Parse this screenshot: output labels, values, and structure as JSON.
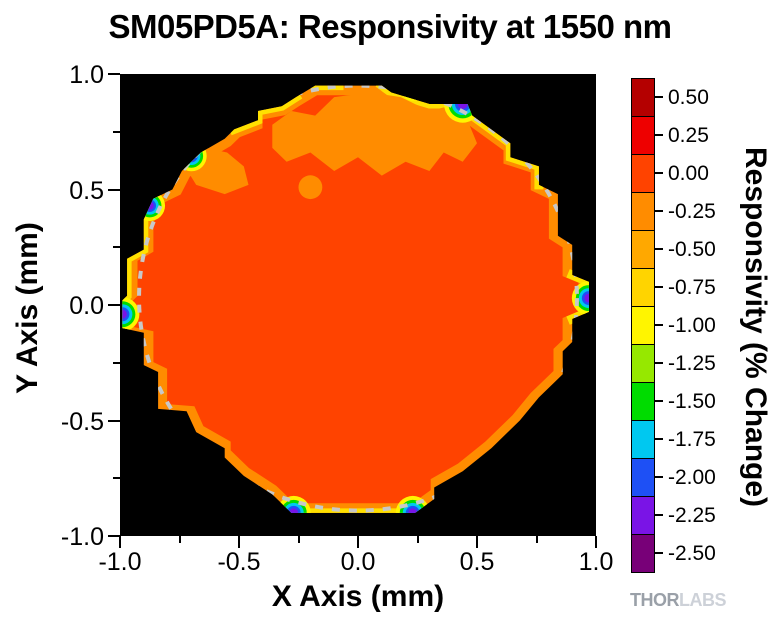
{
  "title": "SM05PD5A: Responsivity at 1550 nm",
  "logo": {
    "part1": "THOR",
    "part2": "LABS"
  },
  "chart_data": {
    "type": "heatmap",
    "title": "SM05PD5A: Responsivity at 1550 nm",
    "xlabel": "X Axis (mm)",
    "ylabel": "Y Axis (mm)",
    "xlim": [
      -1.0,
      1.0
    ],
    "ylim": [
      -1.0,
      1.0
    ],
    "x_major_ticks": [
      -1.0,
      -0.5,
      0.0,
      0.5,
      1.0
    ],
    "x_major_tick_labels": [
      "-1.0",
      "-0.5",
      "0.0",
      "0.5",
      "1.0"
    ],
    "x_minor_ticks": [
      -0.75,
      -0.25,
      0.25,
      0.75
    ],
    "y_major_ticks": [
      1.0,
      0.5,
      0.0,
      -0.5,
      -1.0
    ],
    "y_major_tick_labels": [
      "1.0",
      "0.5",
      "0.0",
      "-0.5",
      "-1.0"
    ],
    "y_minor_ticks": [
      0.75,
      0.25,
      -0.25,
      -0.75
    ],
    "background_color": "#000000",
    "grid": false,
    "legend_position": "right-colorbar",
    "colorbar": {
      "label": "Responsivity (% Change)",
      "levels": [
        0.5,
        0.25,
        0.0,
        -0.25,
        -0.5,
        -0.75,
        -1.0,
        -1.25,
        -1.5,
        -1.75,
        -2.0,
        -2.25,
        -2.5
      ],
      "tick_labels": [
        "0.50",
        "0.25",
        "0.00",
        "-0.25",
        "-0.50",
        "-0.75",
        "-1.00",
        "-1.25",
        "-1.50",
        "-1.75",
        "-2.00",
        "-2.25",
        "-2.50"
      ],
      "colors": [
        "#B40000",
        "#EE0000",
        "#FF4300",
        "#FF8C00",
        "#FFA800",
        "#FFD400",
        "#FFF500",
        "#96E800",
        "#00DC00",
        "#00C8F0",
        "#1E50F5",
        "#7A14E6",
        "#780078"
      ]
    },
    "summary": "Circular photodiode active area ~1.9 mm diameter centered near (0,0). Responsivity change is ~0.00 to -0.25% over most of the area, -0.25 to -0.50% in patches near the top rim, falling off through yellow/green/blue to about -2.50% at a few edge points. Dashed grey circle marks the nominal active-area boundary.",
    "active_area": {
      "body_color": "#FF4300",
      "rim_color": "#FF8C00",
      "yellow_color": "#FFE000",
      "inner_scale": 0.955,
      "center": [
        0,
        0.02
      ],
      "outline": [
        [
          -0.18,
          0.95
        ],
        [
          0.1,
          0.95
        ],
        [
          0.14,
          0.92
        ],
        [
          0.3,
          0.87
        ],
        [
          0.46,
          0.87
        ],
        [
          0.48,
          0.82
        ],
        [
          0.64,
          0.7
        ],
        [
          0.64,
          0.64
        ],
        [
          0.76,
          0.6
        ],
        [
          0.76,
          0.52
        ],
        [
          0.84,
          0.48
        ],
        [
          0.84,
          0.3
        ],
        [
          0.9,
          0.26
        ],
        [
          0.9,
          0.13
        ],
        [
          0.97,
          0.1
        ],
        [
          0.97,
          -0.03
        ],
        [
          0.9,
          -0.06
        ],
        [
          0.9,
          -0.16
        ],
        [
          0.86,
          -0.2
        ],
        [
          0.86,
          -0.3
        ],
        [
          0.76,
          -0.4
        ],
        [
          0.68,
          -0.5
        ],
        [
          0.56,
          -0.62
        ],
        [
          0.44,
          -0.72
        ],
        [
          0.32,
          -0.79
        ],
        [
          0.32,
          -0.84
        ],
        [
          0.24,
          -0.9
        ],
        [
          -0.28,
          -0.9
        ],
        [
          -0.36,
          -0.82
        ],
        [
          -0.48,
          -0.74
        ],
        [
          -0.56,
          -0.66
        ],
        [
          -0.56,
          -0.62
        ],
        [
          -0.68,
          -0.55
        ],
        [
          -0.72,
          -0.46
        ],
        [
          -0.84,
          -0.45
        ],
        [
          -0.84,
          -0.29
        ],
        [
          -0.9,
          -0.26
        ],
        [
          -0.9,
          -0.12
        ],
        [
          -0.99,
          -0.1
        ],
        [
          -0.99,
          0.02
        ],
        [
          -0.97,
          0.04
        ],
        [
          -0.97,
          0.2
        ],
        [
          -0.9,
          0.24
        ],
        [
          -0.9,
          0.37
        ],
        [
          -0.86,
          0.46
        ],
        [
          -0.78,
          0.5
        ],
        [
          -0.74,
          0.58
        ],
        [
          -0.66,
          0.66
        ],
        [
          -0.56,
          0.72
        ],
        [
          -0.52,
          0.76
        ],
        [
          -0.42,
          0.8
        ],
        [
          -0.42,
          0.84
        ],
        [
          -0.32,
          0.86
        ],
        [
          -0.26,
          0.9
        ]
      ],
      "yellow_runs": [
        [
          [
            -0.18,
            0.95
          ],
          [
            -0.08,
            0.95
          ]
        ],
        [
          [
            0.1,
            0.95
          ],
          [
            0.14,
            0.92
          ],
          [
            0.3,
            0.87
          ],
          [
            0.46,
            0.87
          ],
          [
            0.48,
            0.82
          ],
          [
            0.64,
            0.7
          ],
          [
            0.64,
            0.64
          ],
          [
            0.76,
            0.6
          ],
          [
            0.76,
            0.52
          ]
        ],
        [
          [
            -0.26,
            0.9
          ],
          [
            -0.32,
            0.86
          ],
          [
            -0.42,
            0.84
          ],
          [
            -0.42,
            0.8
          ],
          [
            -0.52,
            0.76
          ]
        ],
        [
          [
            -0.86,
            0.46
          ],
          [
            -0.9,
            0.37
          ],
          [
            -0.9,
            0.24
          ],
          [
            -0.97,
            0.2
          ],
          [
            -0.97,
            0.04
          ],
          [
            -0.99,
            0.02
          ],
          [
            -0.99,
            -0.1
          ]
        ],
        [
          [
            0.9,
            0.13
          ],
          [
            0.97,
            0.1
          ],
          [
            0.97,
            -0.03
          ],
          [
            0.9,
            -0.06
          ]
        ],
        [
          [
            -0.26,
            -0.9
          ],
          [
            0.22,
            -0.9
          ]
        ]
      ],
      "patches": {
        "color": "#FF8C00",
        "polygons": [
          [
            [
              -0.36,
              0.78
            ],
            [
              -0.28,
              0.84
            ],
            [
              -0.18,
              0.82
            ],
            [
              -0.1,
              0.9
            ],
            [
              0.05,
              0.92
            ],
            [
              0.18,
              0.9
            ],
            [
              0.3,
              0.84
            ],
            [
              0.38,
              0.86
            ],
            [
              0.46,
              0.8
            ],
            [
              0.5,
              0.7
            ],
            [
              0.44,
              0.62
            ],
            [
              0.36,
              0.66
            ],
            [
              0.3,
              0.58
            ],
            [
              0.2,
              0.62
            ],
            [
              0.1,
              0.56
            ],
            [
              0.0,
              0.64
            ],
            [
              -0.1,
              0.58
            ],
            [
              -0.2,
              0.66
            ],
            [
              -0.3,
              0.62
            ],
            [
              -0.36,
              0.68
            ]
          ],
          [
            [
              -0.74,
              0.62
            ],
            [
              -0.64,
              0.68
            ],
            [
              -0.55,
              0.66
            ],
            [
              -0.48,
              0.6
            ],
            [
              -0.46,
              0.52
            ],
            [
              -0.56,
              0.48
            ],
            [
              -0.68,
              0.52
            ]
          ]
        ],
        "circles": [
          {
            "x": -0.2,
            "y": 0.51,
            "r": 0.05
          }
        ]
      },
      "edge_dips": [
        {
          "x": 0.23,
          "y": 0.935,
          "s": 0.7
        },
        {
          "x": 0.44,
          "y": 0.87,
          "s": 1.1
        },
        {
          "x": -0.7,
          "y": 0.645,
          "s": 0.9
        },
        {
          "x": -0.875,
          "y": 0.43,
          "s": 0.9
        },
        {
          "x": -0.99,
          "y": -0.04,
          "s": 1.0
        },
        {
          "x": -0.27,
          "y": -0.9,
          "s": 1.0
        },
        {
          "x": 0.23,
          "y": -0.9,
          "s": 1.0
        },
        {
          "x": 0.97,
          "y": 0.03,
          "s": 1.0
        }
      ],
      "dip_colors": [
        "#FFF500",
        "#00DC00",
        "#00C8F0",
        "#1E50F5",
        "#7A14E6"
      ],
      "dashed_circle": {
        "cx": 0,
        "cy": 0.03,
        "r": 0.92,
        "color": "#C8C8C8"
      }
    }
  }
}
